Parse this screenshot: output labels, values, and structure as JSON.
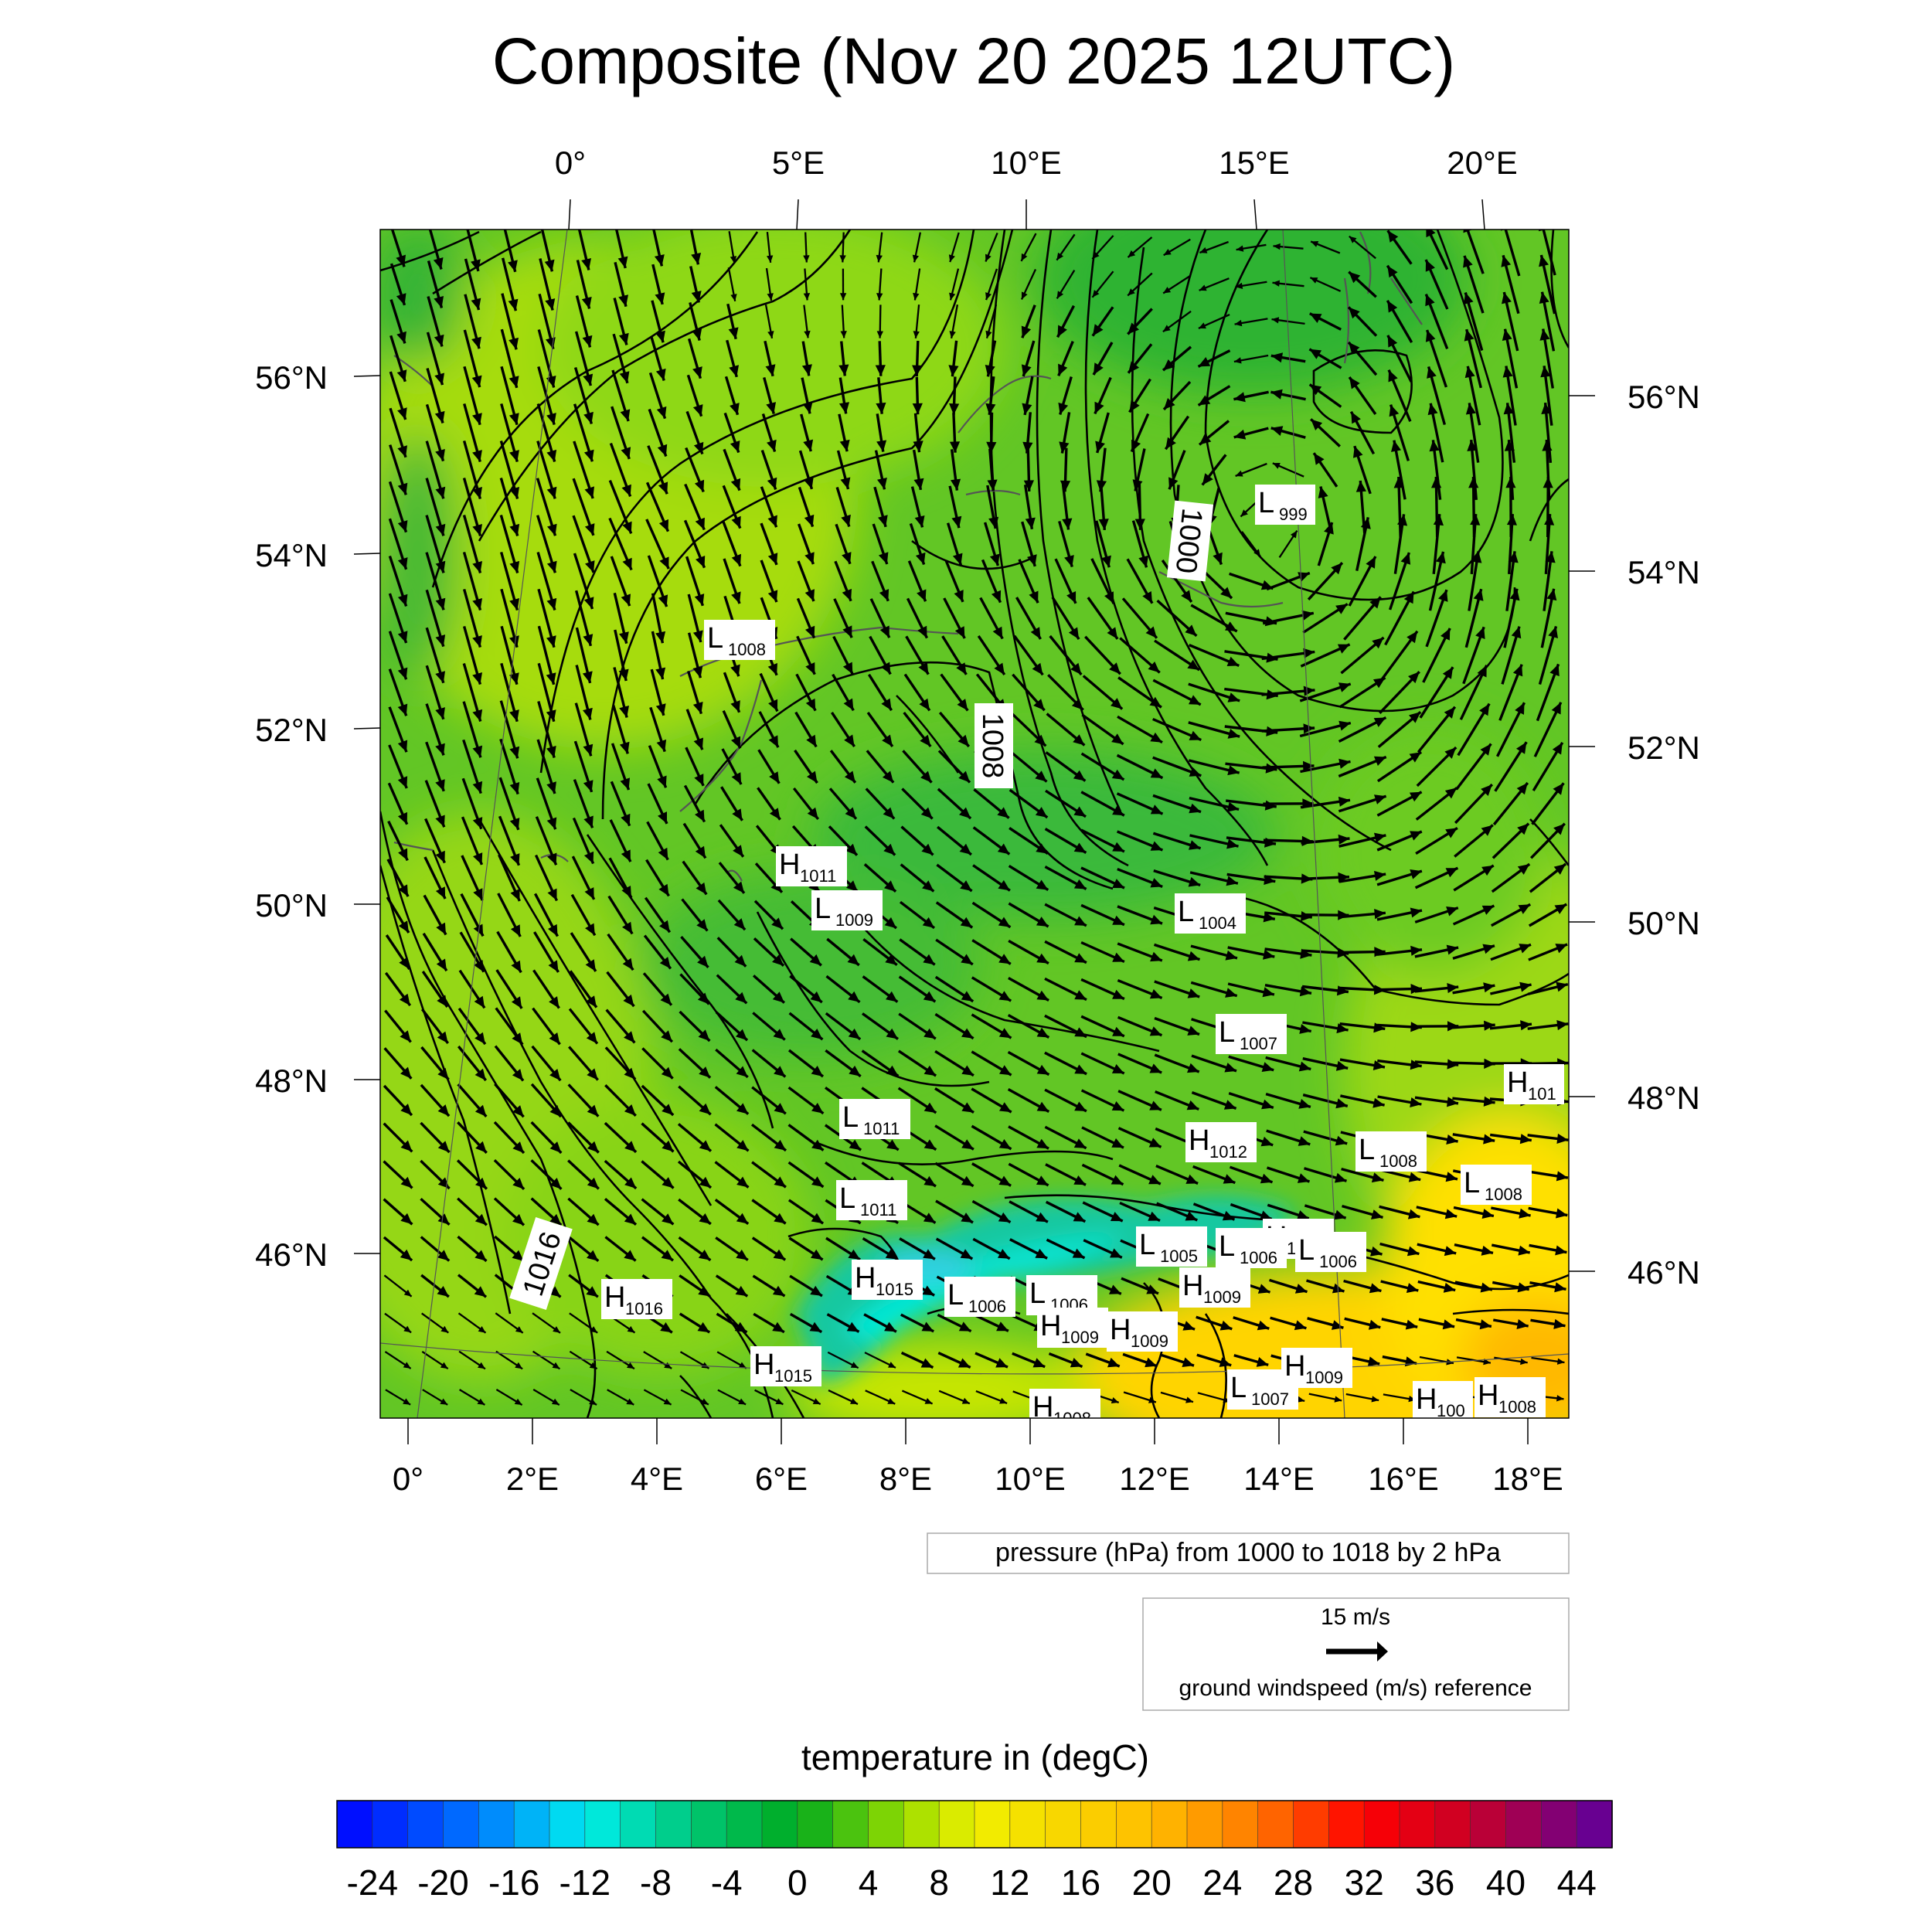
{
  "title": "Composite (Nov 20 2025 12UTC)",
  "top_lon_labels": [
    "0°",
    "5°E",
    "10°E",
    "15°E",
    "20°E"
  ],
  "left_lat_labels": [
    "56°N",
    "54°N",
    "52°N",
    "50°N",
    "48°N",
    "46°N"
  ],
  "right_lat_labels": [
    "56°N",
    "54°N",
    "52°N",
    "50°N",
    "48°N",
    "46°N"
  ],
  "bottom_lon_labels": [
    "0°",
    "2°E",
    "4°E",
    "6°E",
    "8°E",
    "10°E",
    "12°E",
    "14°E",
    "16°E",
    "18°E"
  ],
  "contour_info": "pressure (hPa) from 1000 to 1018 by 2 hPa",
  "wind_ref": {
    "speed_label": "15 m/s",
    "caption": "ground windspeed (m/s) reference"
  },
  "colorbar": {
    "title": "temperature in (degC)",
    "tick_labels": [
      "-24",
      "-20",
      "-16",
      "-12",
      "-8",
      "-4",
      "0",
      "4",
      "8",
      "12",
      "16",
      "20",
      "24",
      "28",
      "32",
      "36",
      "40",
      "44"
    ],
    "min": -26,
    "max": 46,
    "step": 2
  },
  "contour_labels": [
    "1008",
    "1000",
    "1016"
  ],
  "pressure_centers": [
    {
      "type": "L",
      "value": "999"
    },
    {
      "type": "L",
      "value": "1008"
    },
    {
      "type": "H",
      "value": "1011"
    },
    {
      "type": "L",
      "value": "1009"
    },
    {
      "type": "L",
      "value": "1004"
    },
    {
      "type": "L",
      "value": "1007"
    },
    {
      "type": "H",
      "value": "101"
    },
    {
      "type": "L",
      "value": "1011"
    },
    {
      "type": "H",
      "value": "1012"
    },
    {
      "type": "L",
      "value": "1008"
    },
    {
      "type": "L",
      "value": "1008"
    },
    {
      "type": "L",
      "value": "1011"
    },
    {
      "type": "H",
      "value": "1009"
    },
    {
      "type": "L",
      "value": "1005"
    },
    {
      "type": "L",
      "value": "1006"
    },
    {
      "type": "L",
      "value": "1006"
    },
    {
      "type": "H",
      "value": "1009"
    },
    {
      "type": "H",
      "value": "1016"
    },
    {
      "type": "H",
      "value": "1015"
    },
    {
      "type": "L",
      "value": "1006"
    },
    {
      "type": "L",
      "value": "1006"
    },
    {
      "type": "H",
      "value": "1009"
    },
    {
      "type": "H",
      "value": "1009"
    },
    {
      "type": "H",
      "value": "1015"
    },
    {
      "type": "L",
      "value": "1007"
    },
    {
      "type": "H",
      "value": "1009"
    },
    {
      "type": "H",
      "value": "1008"
    },
    {
      "type": "H",
      "value": "100"
    },
    {
      "type": "H",
      "value": "1008"
    }
  ]
}
